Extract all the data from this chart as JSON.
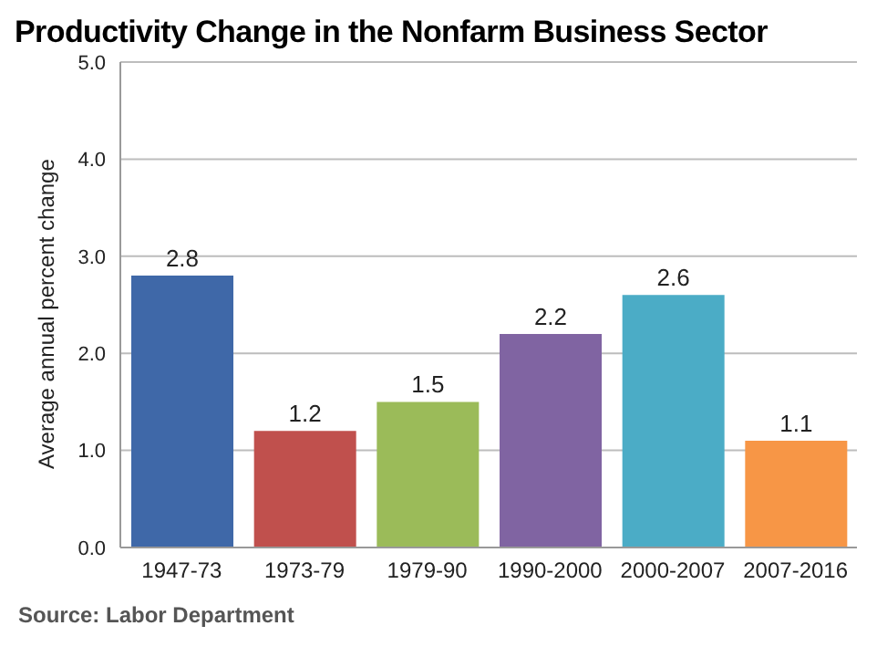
{
  "chart_data": {
    "type": "bar",
    "title": "Productivity Change in the Nonfarm Business Sector",
    "ylabel": "Average annual percent change",
    "categories": [
      "1947-73",
      "1973-79",
      "1979-90",
      "1990-2000",
      "2000-2007",
      "2007-2016"
    ],
    "values": [
      2.8,
      1.2,
      1.5,
      2.2,
      2.6,
      1.1
    ],
    "colors": [
      "#3f68a8",
      "#c0504d",
      "#9bbb59",
      "#8064a2",
      "#4bacc6",
      "#f79646"
    ],
    "ylim": [
      0,
      5
    ],
    "yticks": [
      {
        "value": 0,
        "label": "0.0"
      },
      {
        "value": 1,
        "label": "1.0"
      },
      {
        "value": 2,
        "label": "2.0"
      },
      {
        "value": 3,
        "label": "3.0"
      },
      {
        "value": 4,
        "label": "4.0"
      },
      {
        "value": 5,
        "label": "5.0"
      }
    ],
    "grid": "y",
    "data_labels": true,
    "annotations": [
      "Source: Labor Department"
    ]
  }
}
